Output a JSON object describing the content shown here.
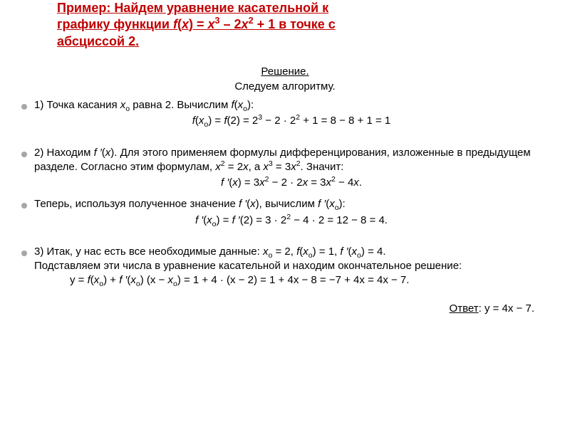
{
  "colors": {
    "title_color": "#c00000",
    "bullet_color": "#a6a6a6",
    "text_color": "#000000",
    "background": "#ffffff"
  },
  "title_lines": {
    "l1": "Пример: Найдем уравнение касательной к",
    "l2": "графику функции f(x) = x3 – 2x2 + 1 в точке с",
    "l3": "абсциссой 2."
  },
  "solution_label": "Решение",
  "follow_label": "Следуем алгоритму.",
  "step1": {
    "intro_a": "1) Точка касания ",
    "intro_b": " равна 2. Вычислим ",
    "xo": "xо",
    "fxo": "f(xо)",
    "colon": ":",
    "formula": "f(xо) = f(2) = 2³ − 2 · 2² + 1 = 8 − 8 + 1 = 1"
  },
  "step2": {
    "intro_a": "2) Находим ",
    "fpx": "f ′(x)",
    "intro_b": ". Для этого применяем формулы дифференцирования, изложенные в предыдущем разделе. Согласно этим формулам, ",
    "x2": "x² = 2x",
    "sep": ", а ",
    "x3": "x³ = 3x²",
    "end": ". Значит:",
    "formula1": "f ′(x) = 3x² − 2 · 2x = 3x² − 4x."
  },
  "step2b": {
    "a": "Теперь, используя полученное значение ",
    "fpx": "f ′(x)",
    "b": ", вычислим ",
    "fpxo": "f ′(xо)",
    "colon": ":",
    "formula": "f ′(xо) = f ′(2) = 3 · 2² − 4 · 2 = 12 − 8 = 4."
  },
  "step3": {
    "a": "3) Итак, у нас есть все необходимые данные: ",
    "xo_eq": "xо = 2",
    "c1": ", ",
    "fxo_eq": "f(xо) = 1",
    "c2": ", ",
    "fpxo_eq": "f ′(xо) = 4",
    "dot": ".",
    "b": "Подставляем эти числа в уравнение касательной и находим окончательное решение:",
    "formula": "y = f(xо) + f ′(xо) (x − xо) = 1 + 4 · (x − 2) = 1 + 4x − 8 = −7 + 4x = 4x − 7."
  },
  "answer": {
    "label": "Ответ",
    "value": ": y = 4x − 7."
  }
}
